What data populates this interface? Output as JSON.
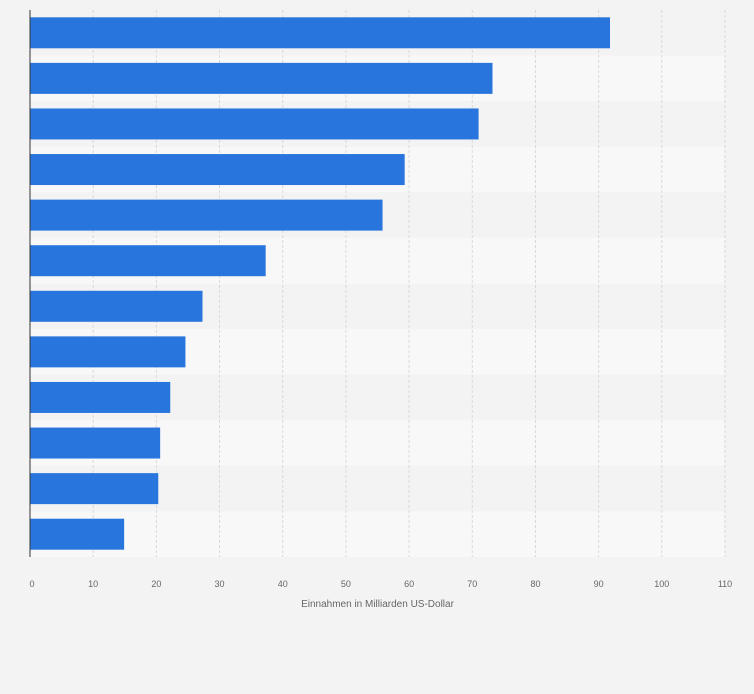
{
  "chart_data": {
    "type": "bar",
    "orientation": "horizontal",
    "values": [
      91.8,
      73.2,
      71.0,
      59.3,
      55.8,
      37.3,
      27.3,
      24.6,
      22.2,
      20.6,
      20.3,
      14.9
    ],
    "xlabel": "Einnahmen in Milliarden US-Dollar",
    "xlim": [
      0,
      110
    ],
    "xticks": [
      "0",
      "10",
      "20",
      "30",
      "40",
      "50",
      "60",
      "70",
      "80",
      "90",
      "100",
      "110"
    ],
    "grid": true,
    "bar_color": "#2876dd",
    "band_colors": [
      "#f3f3f3",
      "#f8f8f8"
    ],
    "grid_color": "#d9d9d9",
    "axis_color": "#333333",
    "tick_label_color": "#666666"
  }
}
